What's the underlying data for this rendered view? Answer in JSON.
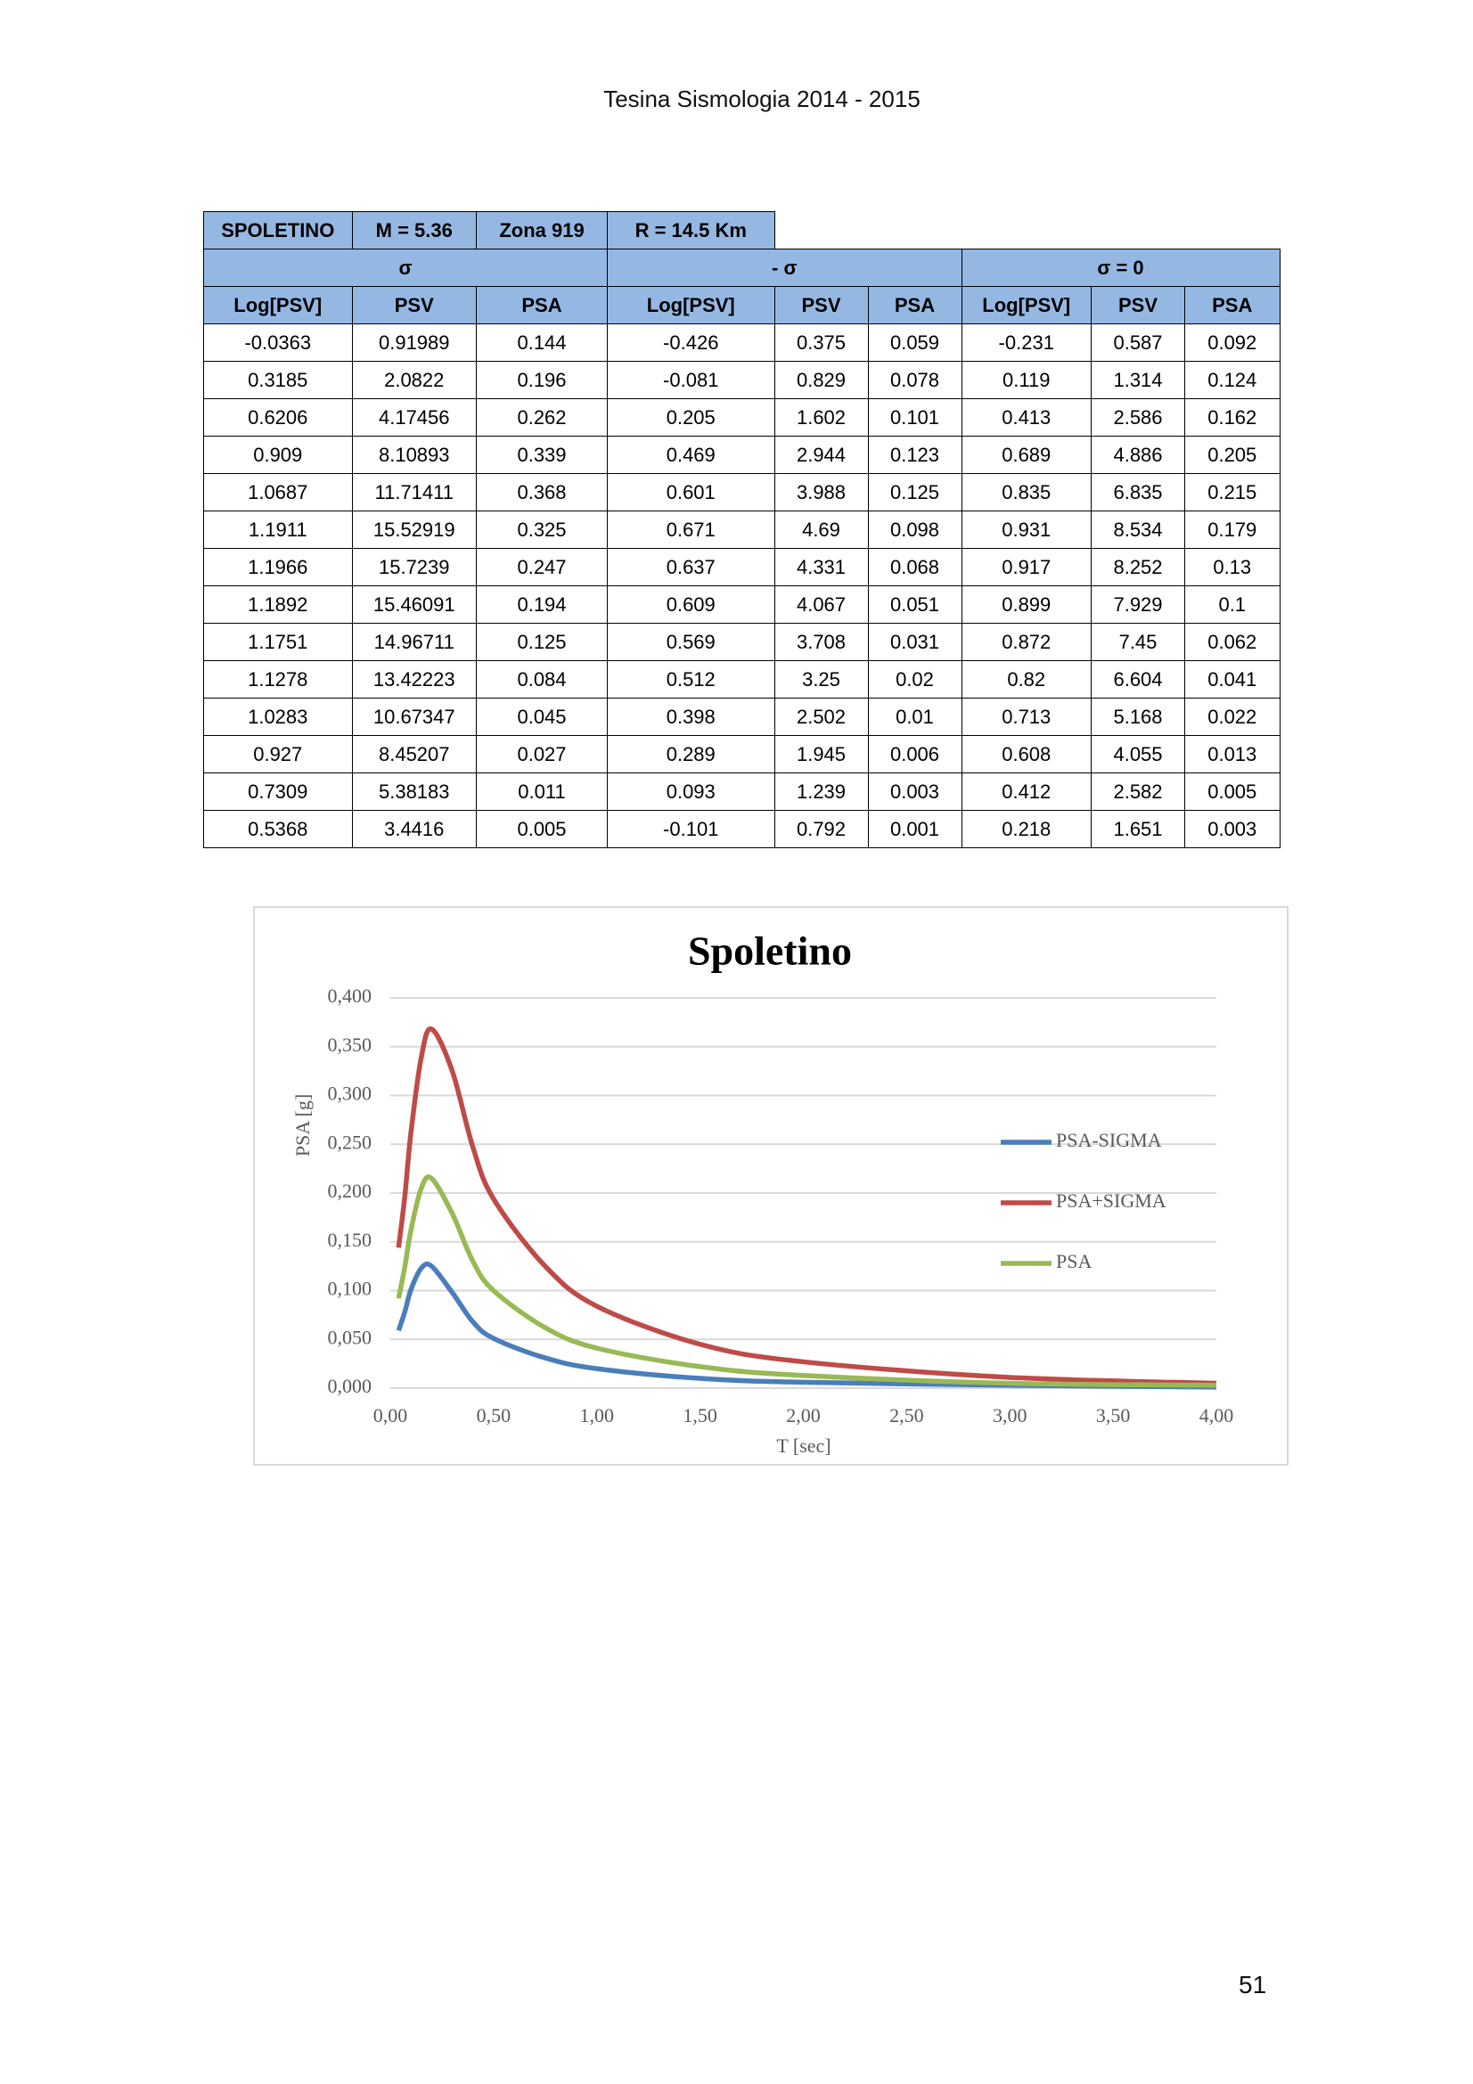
{
  "header": {
    "title": "Tesina Sismologia 2014 - 2015"
  },
  "table": {
    "title_row": [
      "SPOLETINO",
      "M = 5.36",
      "Zona 919",
      "R = 14.5 Km"
    ],
    "groups": [
      "σ",
      "- σ",
      "σ = 0"
    ],
    "columns": [
      "Log[PSV]",
      "PSV",
      "PSA",
      "Log[PSV]",
      "PSV",
      "PSA",
      "Log[PSV]",
      "PSV",
      "PSA"
    ],
    "rows": [
      [
        "-0.0363",
        "0.91989",
        "0.144",
        "-0.426",
        "0.375",
        "0.059",
        "-0.231",
        "0.587",
        "0.092"
      ],
      [
        "0.3185",
        "2.0822",
        "0.196",
        "-0.081",
        "0.829",
        "0.078",
        "0.119",
        "1.314",
        "0.124"
      ],
      [
        "0.6206",
        "4.17456",
        "0.262",
        "0.205",
        "1.602",
        "0.101",
        "0.413",
        "2.586",
        "0.162"
      ],
      [
        "0.909",
        "8.10893",
        "0.339",
        "0.469",
        "2.944",
        "0.123",
        "0.689",
        "4.886",
        "0.205"
      ],
      [
        "1.0687",
        "11.71411",
        "0.368",
        "0.601",
        "3.988",
        "0.125",
        "0.835",
        "6.835",
        "0.215"
      ],
      [
        "1.1911",
        "15.52919",
        "0.325",
        "0.671",
        "4.69",
        "0.098",
        "0.931",
        "8.534",
        "0.179"
      ],
      [
        "1.1966",
        "15.7239",
        "0.247",
        "0.637",
        "4.331",
        "0.068",
        "0.917",
        "8.252",
        "0.13"
      ],
      [
        "1.1892",
        "15.46091",
        "0.194",
        "0.609",
        "4.067",
        "0.051",
        "0.899",
        "7.929",
        "0.1"
      ],
      [
        "1.1751",
        "14.96711",
        "0.125",
        "0.569",
        "3.708",
        "0.031",
        "0.872",
        "7.45",
        "0.062"
      ],
      [
        "1.1278",
        "13.42223",
        "0.084",
        "0.512",
        "3.25",
        "0.02",
        "0.82",
        "6.604",
        "0.041"
      ],
      [
        "1.0283",
        "10.67347",
        "0.045",
        "0.398",
        "2.502",
        "0.01",
        "0.713",
        "5.168",
        "0.022"
      ],
      [
        "0.927",
        "8.45207",
        "0.027",
        "0.289",
        "1.945",
        "0.006",
        "0.608",
        "4.055",
        "0.013"
      ],
      [
        "0.7309",
        "5.38183",
        "0.011",
        "0.093",
        "1.239",
        "0.003",
        "0.412",
        "2.582",
        "0.005"
      ],
      [
        "0.5368",
        "3.4416",
        "0.005",
        "-0.101",
        "0.792",
        "0.001",
        "0.218",
        "1.651",
        "0.003"
      ]
    ]
  },
  "chart_data": {
    "type": "line",
    "title": "Spoletino",
    "x_label": "T [sec]",
    "y_label": "PSA [g]",
    "x": [
      0.04,
      0.07,
      0.1,
      0.15,
      0.2,
      0.3,
      0.4,
      0.5,
      0.75,
      1,
      1.5,
      2,
      3,
      4
    ],
    "series": [
      {
        "name": "PSA-SIGMA",
        "color": "#4a7ebb",
        "values": [
          0.059,
          0.078,
          0.101,
          0.123,
          0.125,
          0.098,
          0.068,
          0.051,
          0.031,
          0.02,
          0.01,
          0.006,
          0.003,
          0.001
        ]
      },
      {
        "name": "PSA+SIGMA",
        "color": "#be4b48",
        "values": [
          0.144,
          0.196,
          0.262,
          0.339,
          0.368,
          0.325,
          0.247,
          0.194,
          0.125,
          0.084,
          0.045,
          0.027,
          0.011,
          0.005
        ]
      },
      {
        "name": "PSA",
        "color": "#98b954",
        "values": [
          0.092,
          0.124,
          0.162,
          0.205,
          0.215,
          0.179,
          0.13,
          0.1,
          0.062,
          0.041,
          0.022,
          0.013,
          0.005,
          0.003
        ]
      }
    ],
    "xlim": [
      0,
      4
    ],
    "xticks": [
      {
        "value": 0,
        "label": "0,00"
      },
      {
        "value": 0.5,
        "label": "0,50"
      },
      {
        "value": 1,
        "label": "1,00"
      },
      {
        "value": 1.5,
        "label": "1,50"
      },
      {
        "value": 2,
        "label": "2,00"
      },
      {
        "value": 2.5,
        "label": "2,50"
      },
      {
        "value": 3,
        "label": "3,00"
      },
      {
        "value": 3.5,
        "label": "3,50"
      },
      {
        "value": 4,
        "label": "4,00"
      }
    ],
    "ylim": [
      0,
      0.4
    ],
    "yticks": [
      {
        "value": 0,
        "label": "0,000"
      },
      {
        "value": 0.05,
        "label": "0,050"
      },
      {
        "value": 0.1,
        "label": "0,100"
      },
      {
        "value": 0.15,
        "label": "0,150"
      },
      {
        "value": 0.2,
        "label": "0,200"
      },
      {
        "value": 0.25,
        "label": "0,250"
      },
      {
        "value": 0.3,
        "label": "0,300"
      },
      {
        "value": 0.35,
        "label": "0,350"
      },
      {
        "value": 0.4,
        "label": "0,400"
      }
    ],
    "grid": true,
    "legend": "right"
  },
  "page_number": "51"
}
